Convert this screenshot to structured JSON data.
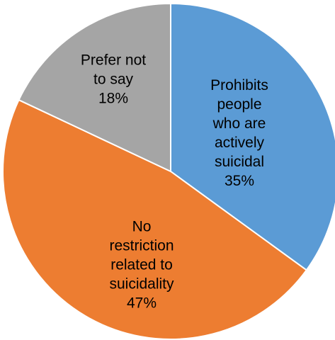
{
  "chart_data": {
    "type": "pie",
    "title": "",
    "slices": [
      {
        "lines": [
          "Prohibits",
          "people",
          "who are",
          "actively",
          "suicidal"
        ],
        "percent_label": "35%",
        "value": 35,
        "color": "#5B9BD5"
      },
      {
        "lines": [
          "No",
          "restriction",
          "related to",
          "suicidality"
        ],
        "percent_label": "47%",
        "value": 47,
        "color": "#ED7D31"
      },
      {
        "lines": [
          "Prefer not",
          "to say"
        ],
        "percent_label": "18%",
        "value": 18,
        "color": "#A5A5A5"
      }
    ],
    "start_angle": "12 o'clock",
    "direction": "clockwise",
    "legend": "none (category labels inside slices)"
  }
}
